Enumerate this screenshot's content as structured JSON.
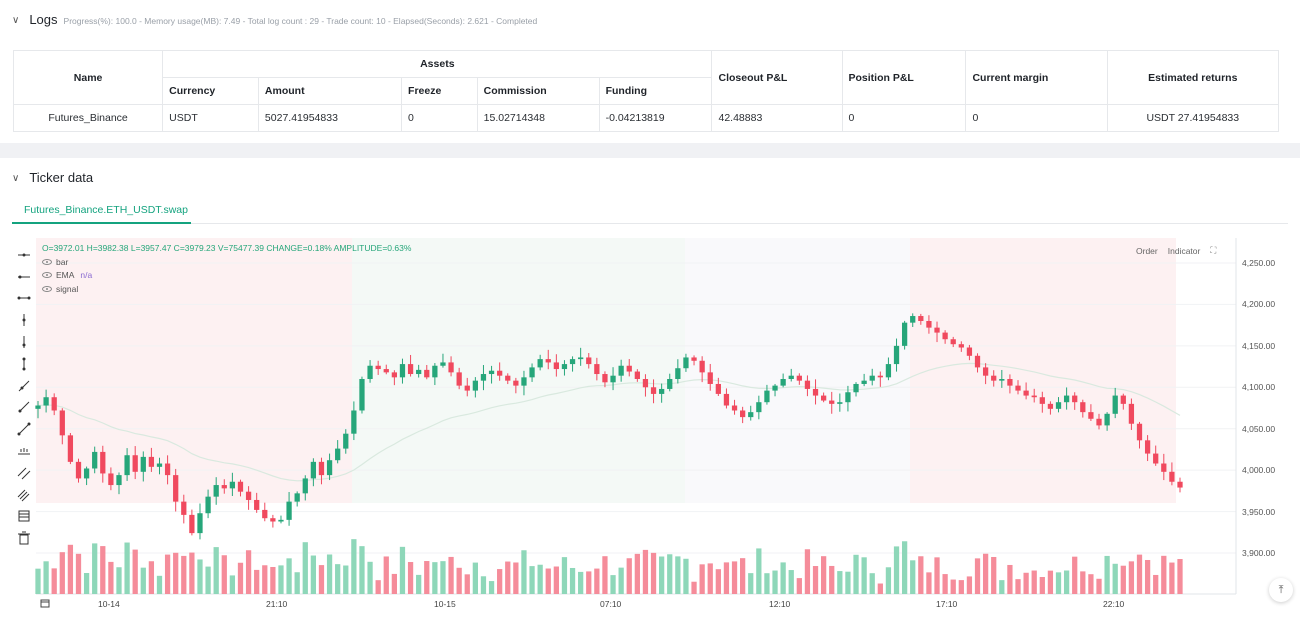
{
  "logs": {
    "title": "Logs",
    "status": "Progress(%): 100.0 - Memory usage(MB): 7.49 - Total log count : 29 - Trade count:  10 - Elapsed(Seconds): 2.621 - Completed",
    "table": {
      "name_header": "Name",
      "assets_header": "Assets",
      "sub_headers": [
        "Currency",
        "Amount",
        "Freeze",
        "Commission",
        "Funding"
      ],
      "right_headers": [
        "Closeout P&L",
        "Position P&L",
        "Current margin",
        "Estimated returns"
      ],
      "row": {
        "name": "Futures_Binance",
        "currency": "USDT",
        "amount": "5027.41954833",
        "freeze": "0",
        "commission": "15.02714348",
        "funding": "-0.04213819",
        "closeout_pnl": "42.48883",
        "position_pnl": "0",
        "current_margin": "0",
        "estimated_returns": "USDT 27.41954833"
      }
    }
  },
  "ticker": {
    "title": "Ticker data",
    "tab_label": "Futures_Binance.ETH_USDT.swap",
    "ohlc": {
      "o_label": "O=",
      "o": "3972.01",
      "h_label": " H=",
      "h": "3982.38",
      "l_label": " L=",
      "l": "3957.47",
      "c_label": " C=",
      "c": "3979.23",
      "v_label": " V=",
      "v": "75477.39",
      "change_label": " CHANGE=",
      "change": "0.18%",
      "amp_label": " AMPLITUDE=",
      "amp": "0.63%"
    },
    "indicators": [
      {
        "name": "bar",
        "value": ""
      },
      {
        "name": "EMA",
        "value": "n/a"
      },
      {
        "name": "signal",
        "value": ""
      }
    ],
    "buttons": {
      "order": "Order",
      "indicator": "Indicator"
    }
  },
  "chart_data": {
    "type": "candlestick",
    "price_ticks": [
      "4,250.00",
      "4,200.00",
      "4,150.00",
      "4,100.00",
      "4,050.00",
      "4,000.00",
      "3,950.00",
      "3,900.00"
    ],
    "time_ticks": [
      "10-14",
      "21:10",
      "10-15",
      "07:10",
      "12:10",
      "17:10",
      "22:10"
    ],
    "ylim": [
      3870,
      4270
    ],
    "colors": {
      "up": "#26a67a",
      "down": "#f0495e",
      "ema": "#d9e9df"
    },
    "closes": [
      4078,
      4088,
      4072,
      4042,
      4010,
      3990,
      4002,
      4022,
      3996,
      3982,
      3994,
      4018,
      3998,
      4016,
      4004,
      4008,
      3994,
      3962,
      3946,
      3924,
      3948,
      3968,
      3982,
      3978,
      3986,
      3974,
      3964,
      3952,
      3942,
      3938,
      3940,
      3962,
      3972,
      3990,
      4010,
      3994,
      4012,
      4026,
      4044,
      4072,
      4110,
      4126,
      4122,
      4118,
      4112,
      4128,
      4116,
      4121,
      4112,
      4126,
      4130,
      4118,
      4102,
      4096,
      4108,
      4116,
      4120,
      4114,
      4108,
      4102,
      4112,
      4124,
      4134,
      4130,
      4122,
      4128,
      4134,
      4136,
      4128,
      4116,
      4106,
      4114,
      4126,
      4119,
      4110,
      4100,
      4092,
      4098,
      4110,
      4123,
      4136,
      4132,
      4118,
      4104,
      4092,
      4078,
      4072,
      4064,
      4070,
      4082,
      4096,
      4102,
      4110,
      4114,
      4108,
      4098,
      4090,
      4084,
      4080,
      4082,
      4094,
      4104,
      4108,
      4114,
      4112,
      4128,
      4150,
      4178,
      4186,
      4180,
      4172,
      4166,
      4158,
      4152,
      4148,
      4138,
      4124,
      4114,
      4108,
      4110,
      4102,
      4096,
      4090,
      4088,
      4080,
      4074,
      4082,
      4090,
      4082,
      4070,
      4062,
      4054,
      4068,
      4090,
      4080,
      4056,
      4036,
      4020,
      4008,
      3998,
      3986,
      3979
    ],
    "candles_note": "60-minute bars, values read from axis"
  },
  "page_extra": {
    "scroll_top_label": "⤒"
  }
}
